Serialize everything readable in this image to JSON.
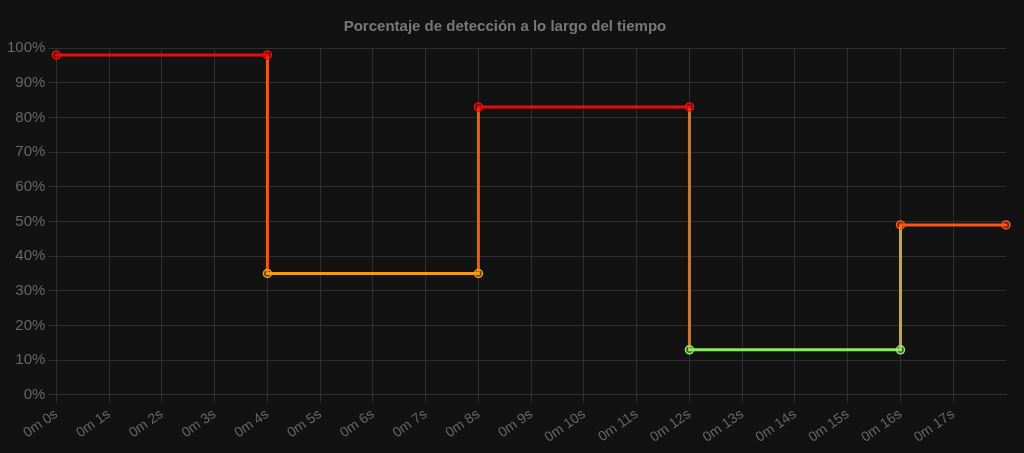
{
  "chart_data": {
    "type": "line",
    "title": "Porcentaje de detección a lo largo del tiempo",
    "categories": [
      "0m 0s",
      "0m 1s",
      "0m 2s",
      "0m 3s",
      "0m 4s",
      "0m 5s",
      "0m 6s",
      "0m 7s",
      "0m 8s",
      "0m 9s",
      "0m 10s",
      "0m 11s",
      "0m 12s",
      "0m 13s",
      "0m 14s",
      "0m 15s",
      "0m 16s",
      "0m 17s",
      null
    ],
    "series": [
      {
        "color": "#ee0a0a",
        "values": [
          98,
          null,
          null,
          null,
          98,
          null,
          null,
          null,
          null,
          null,
          null,
          null,
          null,
          null,
          null,
          null,
          null,
          null,
          null
        ]
      },
      {
        "color": "#f39c12",
        "values": [
          null,
          null,
          null,
          null,
          35,
          null,
          null,
          null,
          35,
          null,
          null,
          null,
          null,
          null,
          null,
          null,
          null,
          null,
          null
        ]
      },
      {
        "color": "#ee0a0a",
        "values": [
          null,
          null,
          null,
          null,
          null,
          null,
          null,
          null,
          83,
          null,
          null,
          null,
          83,
          null,
          null,
          null,
          null,
          null,
          null
        ]
      },
      {
        "color": "#90e868",
        "values": [
          null,
          null,
          null,
          null,
          null,
          null,
          null,
          null,
          null,
          null,
          null,
          null,
          13,
          null,
          null,
          null,
          13,
          null,
          null
        ]
      },
      {
        "color": "#ff5512",
        "values": [
          null,
          null,
          null,
          null,
          null,
          null,
          null,
          null,
          null,
          null,
          null,
          null,
          null,
          null,
          null,
          null,
          49,
          null,
          49
        ]
      },
      {
        "color": "#f25a0e",
        "marker": "none",
        "x": [
          "0m 4s",
          "0m 4s"
        ],
        "values": [
          98,
          35
        ]
      },
      {
        "color": "#f25a0e",
        "marker": "none",
        "x": [
          "0m 8s",
          "0m 8s"
        ],
        "values": [
          35,
          83
        ]
      },
      {
        "color": "#c27a38",
        "marker": "none",
        "x": [
          "0m 12s",
          "0m 12s"
        ],
        "values": [
          83,
          13
        ]
      },
      {
        "color": "#c8a83c",
        "marker": "none",
        "x": [
          "0m 16s",
          "0m 16s"
        ],
        "values": [
          13,
          49
        ]
      }
    ],
    "ylim": [
      0,
      100
    ],
    "yticks": [
      {
        "value": 0,
        "label": "0%"
      },
      {
        "value": 10,
        "label": "10%"
      },
      {
        "value": 20,
        "label": "20%"
      },
      {
        "value": 30,
        "label": "30%"
      },
      {
        "value": 40,
        "label": "40%"
      },
      {
        "value": 50,
        "label": "50%"
      },
      {
        "value": 60,
        "label": "60%"
      },
      {
        "value": 70,
        "label": "70%"
      },
      {
        "value": 80,
        "label": "80%"
      },
      {
        "value": 90,
        "label": "90%"
      },
      {
        "value": 100,
        "label": "100%"
      }
    ],
    "grid": true,
    "marker": "circle",
    "line_style": "solid",
    "legend": false
  }
}
